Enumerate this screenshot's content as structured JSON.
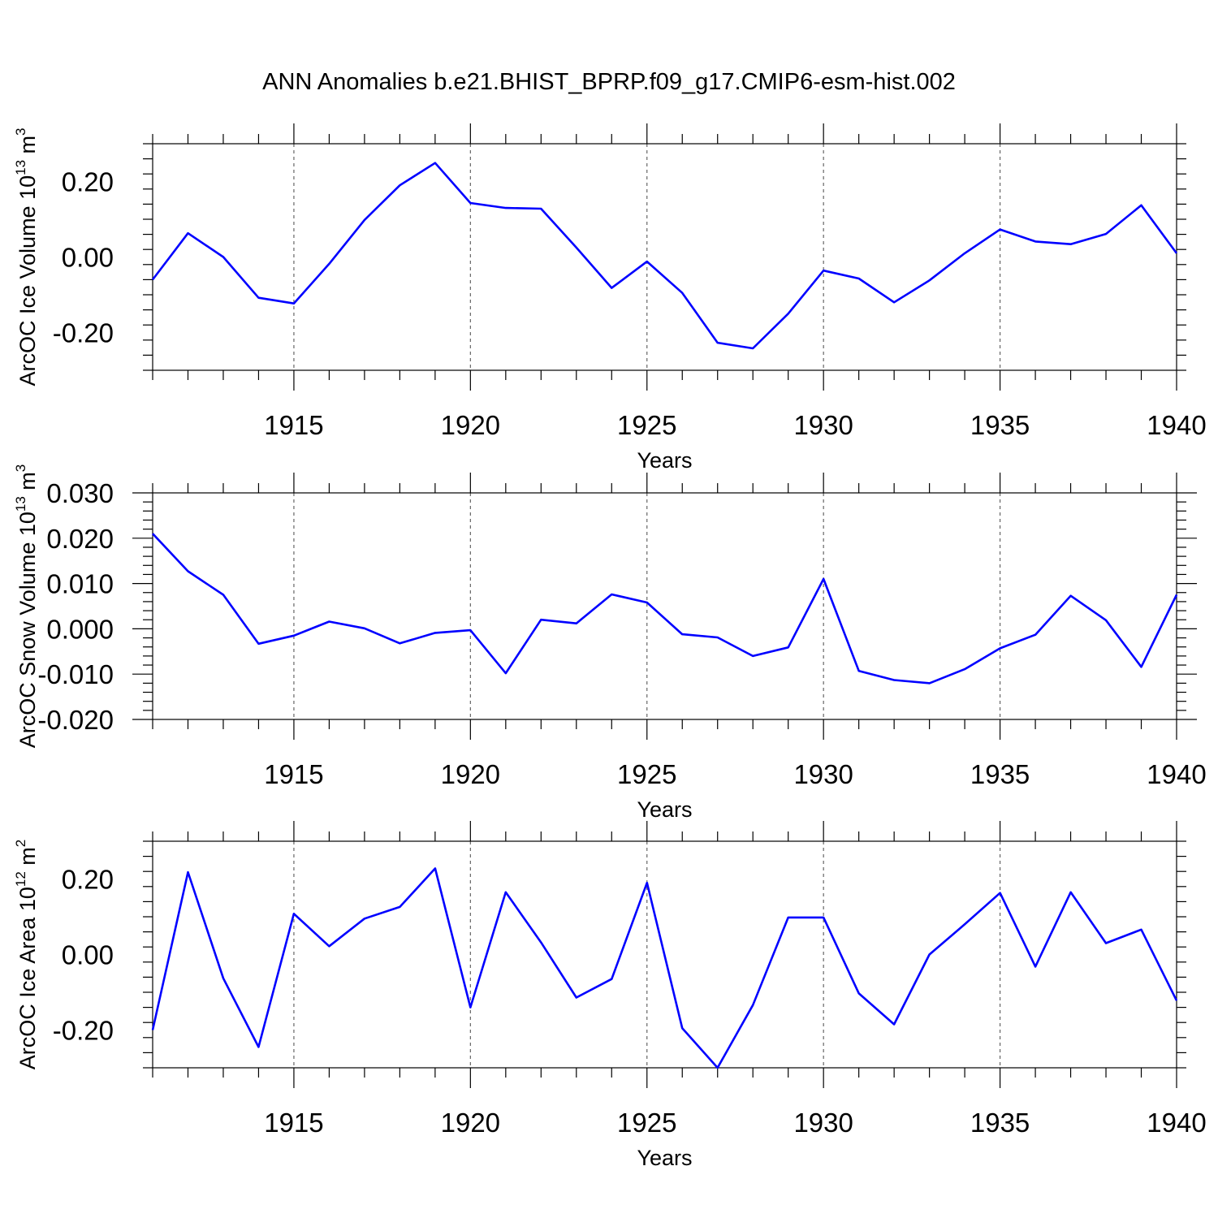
{
  "title": "ANN Anomalies b.e21.BHIST_BPRP.f09_g17.CMIP6-esm-hist.002",
  "line_color": "#0000ff",
  "chart_data": [
    {
      "type": "line",
      "title": "ANN Anomalies b.e21.BHIST_BPRP.f09_g17.CMIP6-esm-hist.002",
      "xlabel": "Years",
      "ylabel_main": "ArcOC Ice Volume 10",
      "ylabel_exp": "13",
      "ylabel_unit": " m",
      "ylabel_unit_exp": "3",
      "xlim": [
        1911,
        1940
      ],
      "ylim": [
        -0.3,
        0.3
      ],
      "x_ticks": [
        1915,
        1920,
        1925,
        1930,
        1935,
        1940
      ],
      "y_ticks": [
        0.2,
        0.0,
        -0.2
      ],
      "y_tick_labels": [
        "0.20",
        "0.00",
        "-0.20"
      ],
      "grid": "vertical dashed at major x ticks",
      "x": [
        1911,
        1912,
        1913,
        1914,
        1915,
        1916,
        1917,
        1918,
        1919,
        1920,
        1921,
        1922,
        1923,
        1924,
        1925,
        1926,
        1927,
        1928,
        1929,
        1930,
        1931,
        1932,
        1933,
        1934,
        1935,
        1936,
        1937,
        1938,
        1939,
        1940
      ],
      "values": [
        -0.06,
        0.063,
        0.0,
        -0.108,
        -0.123,
        -0.018,
        0.098,
        0.19,
        0.249,
        0.143,
        0.13,
        0.128,
        0.025,
        -0.082,
        -0.012,
        -0.095,
        -0.227,
        -0.242,
        -0.15,
        -0.036,
        -0.057,
        -0.12,
        -0.062,
        0.01,
        0.073,
        0.041,
        0.034,
        0.061,
        0.137,
        0.01
      ]
    },
    {
      "type": "line",
      "xlabel": "Years",
      "ylabel_main": "ArcOC Snow Volume 10",
      "ylabel_exp": "13",
      "ylabel_unit": " m",
      "ylabel_unit_exp": "3",
      "xlim": [
        1911,
        1940
      ],
      "ylim": [
        -0.02,
        0.03
      ],
      "x_ticks": [
        1915,
        1920,
        1925,
        1930,
        1935,
        1940
      ],
      "y_ticks": [
        0.03,
        0.02,
        0.01,
        0.0,
        -0.01,
        -0.02
      ],
      "y_tick_labels": [
        "0.030",
        "0.020",
        "0.010",
        "0.000",
        "-0.010",
        "-0.020"
      ],
      "grid": "vertical dashed at major x ticks",
      "x": [
        1911,
        1912,
        1913,
        1914,
        1915,
        1916,
        1917,
        1918,
        1919,
        1920,
        1921,
        1922,
        1923,
        1924,
        1925,
        1926,
        1927,
        1928,
        1929,
        1930,
        1931,
        1932,
        1933,
        1934,
        1935,
        1936,
        1937,
        1938,
        1939,
        1940
      ],
      "values": [
        0.021,
        0.0127,
        0.0075,
        -0.0033,
        -0.0015,
        0.0016,
        0.0001,
        -0.0032,
        -0.0009,
        -0.0003,
        -0.0098,
        0.002,
        0.0012,
        0.0076,
        0.0058,
        -0.0012,
        -0.0019,
        -0.006,
        -0.0041,
        0.011,
        -0.0093,
        -0.0113,
        -0.012,
        -0.0089,
        -0.0043,
        -0.0013,
        0.0073,
        0.0019,
        -0.0084,
        0.0075
      ]
    },
    {
      "type": "line",
      "xlabel": "Years",
      "ylabel_main": "ArcOC Ice Area 10",
      "ylabel_exp": "12",
      "ylabel_unit": " m",
      "ylabel_unit_exp": "2",
      "xlim": [
        1911,
        1940
      ],
      "ylim": [
        -0.3,
        0.3
      ],
      "x_ticks": [
        1915,
        1920,
        1925,
        1930,
        1935,
        1940
      ],
      "y_ticks": [
        0.2,
        0.0,
        -0.2
      ],
      "y_tick_labels": [
        "0.20",
        "0.00",
        "-0.20"
      ],
      "grid": "vertical dashed at major x ticks",
      "x": [
        1911,
        1912,
        1913,
        1914,
        1915,
        1916,
        1917,
        1918,
        1919,
        1920,
        1921,
        1922,
        1923,
        1924,
        1925,
        1926,
        1927,
        1928,
        1929,
        1930,
        1931,
        1932,
        1933,
        1934,
        1935,
        1936,
        1937,
        1938,
        1939,
        1940
      ],
      "values": [
        -0.2,
        0.218,
        -0.063,
        -0.245,
        0.108,
        0.022,
        0.095,
        0.126,
        0.228,
        -0.14,
        0.165,
        0.032,
        -0.114,
        -0.065,
        0.19,
        -0.195,
        -0.3,
        -0.134,
        0.098,
        0.098,
        -0.103,
        -0.185,
        0.0,
        0.08,
        0.163,
        -0.032,
        0.165,
        0.03,
        0.066,
        -0.122
      ]
    }
  ]
}
